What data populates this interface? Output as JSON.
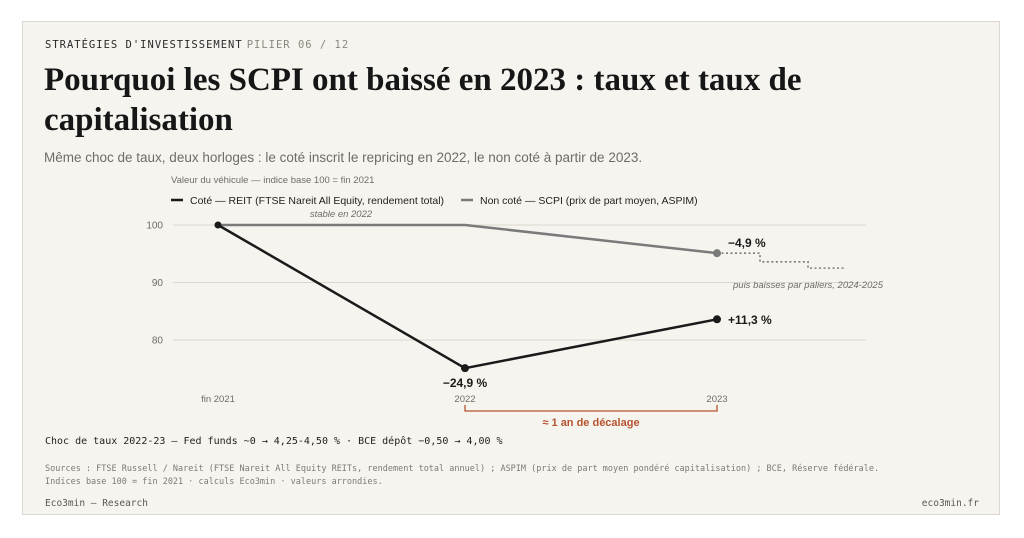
{
  "header": {
    "kicker": "STRATÉGIES D'INVESTISSEMENT",
    "pillar": "PILIER 06 / 12",
    "title": "Pourquoi les SCPI ont baissé en 2023 : taux et taux de capitalisation",
    "subtitle": "Même choc de taux, deux horloges : le coté inscrit le repricing en 2022, le non coté à partir de 2023."
  },
  "chart_data": {
    "type": "line",
    "title": "Valeur du véhicule — indice base 100 = fin 2021",
    "categories": [
      "fin 2021",
      "2022",
      "2023"
    ],
    "ylim": [
      75,
      102
    ],
    "yticks": [
      80,
      90,
      100
    ],
    "grid": true,
    "legend_position": "top-left",
    "series": [
      {
        "name": "Coté — REIT (FTSE Nareit All Equity, rendement total)",
        "color": "#1a1a1a",
        "values": [
          100,
          75.1,
          83.6
        ]
      },
      {
        "name": "Non coté — SCPI (prix de part moyen, ASPIM)",
        "color": "#7a7a7a",
        "values": [
          100,
          100,
          95.1
        ]
      }
    ],
    "projection": {
      "series": "Non coté — SCPI (prix de part moyen, ASPIM)",
      "steps": [
        95.1,
        93.6,
        92.5
      ]
    },
    "annotations": {
      "stable": "stable en 2022",
      "reit_low": "−24,9 %",
      "reit_end": "+11,3 %",
      "scpi_end": "−4,9 %",
      "paliers": "puis baisses par paliers, 2024-2025",
      "lag": "≈ 1 an de décalage"
    },
    "accent_color": "#b5532f"
  },
  "notes": {
    "shock": "Choc de taux 2022-23 — Fed funds ~0 → 4,25-4,50 % · BCE dépôt −0,50 → 4,00 %",
    "sources_line1": "Sources : FTSE Russell / Nareit (FTSE Nareit All Equity REITs, rendement total annuel) ; ASPIM (prix de part moyen pondéré capitalisation) ; BCE, Réserve fédérale.",
    "sources_line2": "Indices base 100 = fin 2021 · calculs Eco3min · valeurs arrondies."
  },
  "footer": {
    "left": "Eco3min — Research",
    "right": "eco3min.fr"
  }
}
